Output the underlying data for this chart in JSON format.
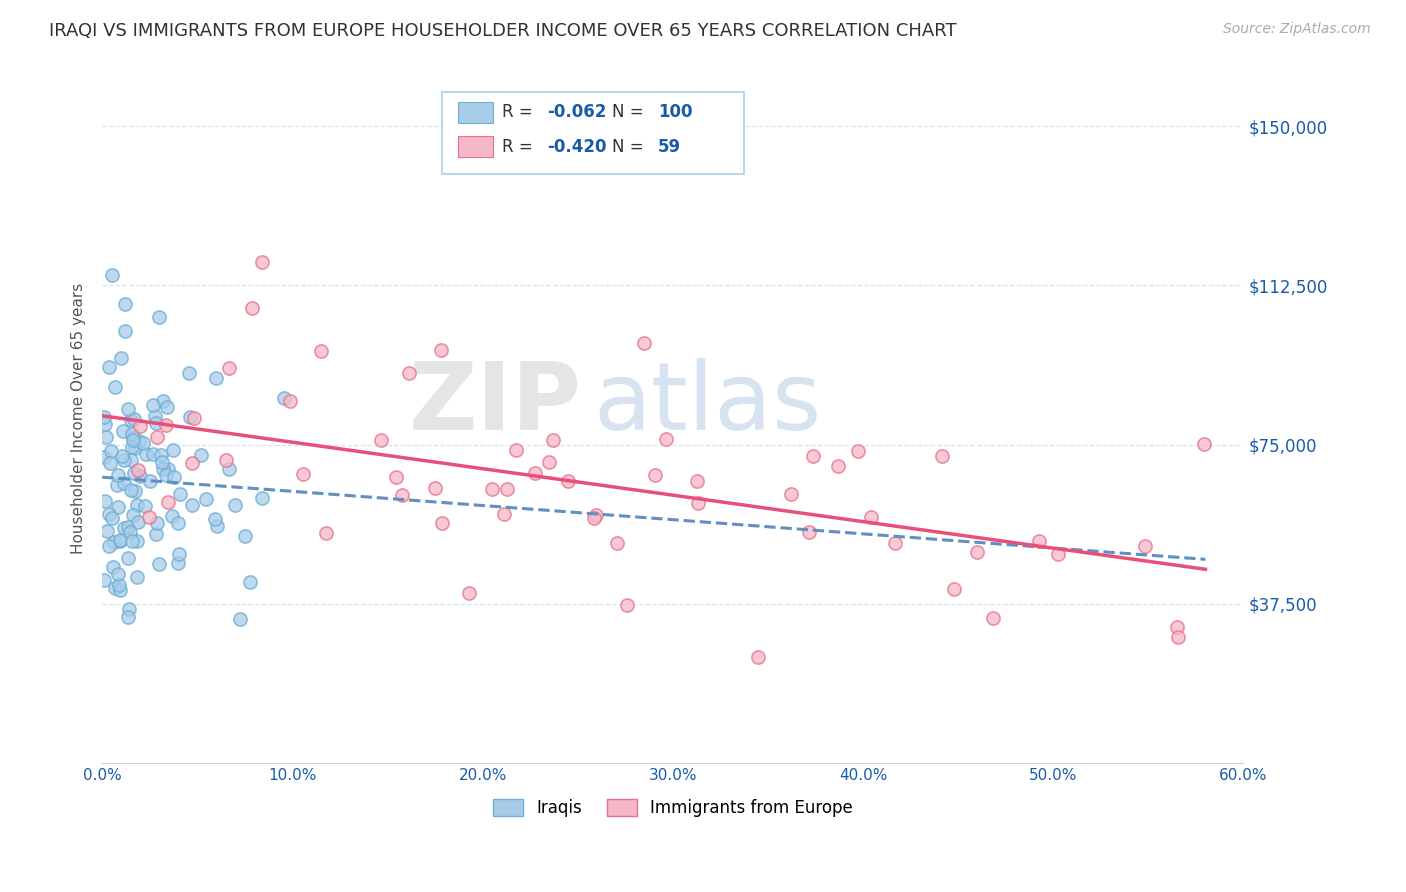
{
  "title": "IRAQI VS IMMIGRANTS FROM EUROPE HOUSEHOLDER INCOME OVER 65 YEARS CORRELATION CHART",
  "source": "Source: ZipAtlas.com",
  "ylabel": "Householder Income Over 65 years",
  "xlim": [
    0.0,
    0.6
  ],
  "ylim": [
    0,
    162500
  ],
  "yticks": [
    0,
    37500,
    75000,
    112500,
    150000
  ],
  "ytick_labels": [
    "",
    "$37,500",
    "$75,000",
    "$112,500",
    "$150,000"
  ],
  "xticks": [
    0.0,
    0.1,
    0.2,
    0.3,
    0.4,
    0.5,
    0.6
  ],
  "xtick_labels": [
    "0.0%",
    "10.0%",
    "20.0%",
    "30.0%",
    "40.0%",
    "50.0%",
    "60.0%"
  ],
  "series": [
    {
      "name": "Iraqis",
      "R": "-0.062",
      "N": "100",
      "color": "#a8cce8",
      "edge_color": "#6baed6",
      "line_color": "#6090c0",
      "line_style": "--"
    },
    {
      "name": "Immigrants from Europe",
      "R": "-0.420",
      "N": "59",
      "color": "#f5b8c8",
      "edge_color": "#e8708a",
      "line_color": "#e8507a",
      "line_style": "-"
    }
  ],
  "watermark_zip": "ZIP",
  "watermark_atlas": "atlas",
  "background_color": "#ffffff",
  "grid_color": "#d8e4f0",
  "title_color": "#333333",
  "axis_label_color": "#555555",
  "tick_label_color": "#1a5ba8",
  "source_color": "#aaaaaa"
}
